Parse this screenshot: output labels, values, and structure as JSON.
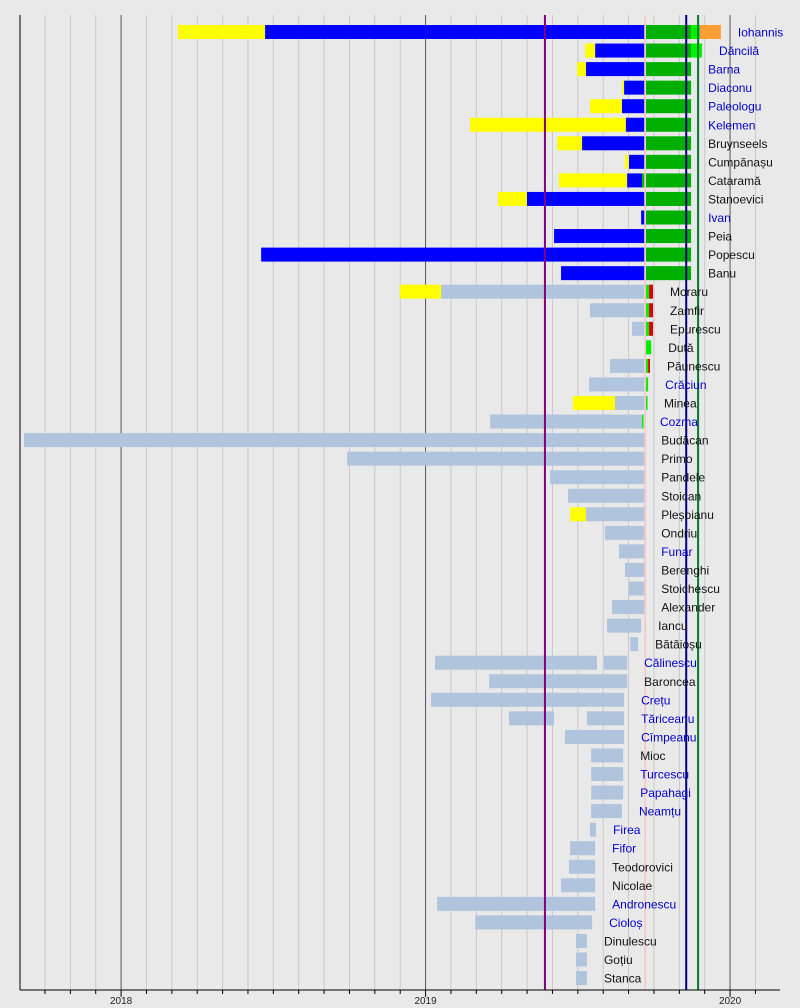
{
  "chart_data": {
    "type": "bar",
    "orientation": "horizontal-timeline",
    "xlabel": "",
    "ylabel": "",
    "xlim": [
      2017.668,
      2020.164
    ],
    "x_ticks": [
      {
        "value": 2018,
        "label": "2018"
      },
      {
        "value": 2019,
        "label": "2019"
      },
      {
        "value": 2020,
        "label": "2020"
      }
    ],
    "grid": "monthly vertical lines, yearly lines darker",
    "palette": {
      "y": "#ffff00",
      "b": "#0000ff",
      "g": "#00b000",
      "G": "#00ee00",
      "o": "#ff9f33",
      "r": "#dd0000",
      "s": "#b0c4de"
    },
    "label_colors": {
      "blue": "#0000cc",
      "black": "#111111"
    },
    "reference_lines": [
      {
        "value": 2019.392,
        "color": "#800080"
      },
      {
        "value": 2019.721,
        "color": "#ffb0b0"
      },
      {
        "value": 2019.856,
        "color": "#000080"
      },
      {
        "value": 2019.895,
        "color": "#007a30"
      }
    ],
    "rows": [
      {
        "name": "Iohannis",
        "label": "blue",
        "segments": [
          [
            2018.187,
            2018.473,
            "y"
          ],
          [
            2018.473,
            2019.718,
            "b"
          ],
          [
            2019.724,
            2019.872,
            "g"
          ],
          [
            2019.872,
            2019.901,
            "G"
          ],
          [
            2019.901,
            2019.97,
            "o"
          ]
        ]
      },
      {
        "name": "Dăncilă",
        "label": "blue",
        "segments": [
          [
            2019.524,
            2019.557,
            "y"
          ],
          [
            2019.557,
            2019.718,
            "b"
          ],
          [
            2019.724,
            2019.872,
            "g"
          ],
          [
            2019.872,
            2019.908,
            "G"
          ]
        ]
      },
      {
        "name": "Barna",
        "label": "blue",
        "segments": [
          [
            2019.498,
            2019.527,
            "y"
          ],
          [
            2019.527,
            2019.718,
            "b"
          ],
          [
            2019.724,
            2019.872,
            "g"
          ]
        ]
      },
      {
        "name": "Diaconu",
        "label": "blue",
        "segments": [
          [
            2019.645,
            2019.652,
            "y"
          ],
          [
            2019.652,
            2019.718,
            "b"
          ],
          [
            2019.724,
            2019.872,
            "g"
          ]
        ]
      },
      {
        "name": "Paleologu",
        "label": "blue",
        "segments": [
          [
            2019.54,
            2019.645,
            "y"
          ],
          [
            2019.645,
            2019.718,
            "b"
          ],
          [
            2019.724,
            2019.872,
            "g"
          ]
        ]
      },
      {
        "name": "Kelemen",
        "label": "blue",
        "segments": [
          [
            2019.146,
            2019.658,
            "y"
          ],
          [
            2019.658,
            2019.718,
            "b"
          ],
          [
            2019.724,
            2019.872,
            "g"
          ]
        ]
      },
      {
        "name": "Bruynseels",
        "label": "black",
        "segments": [
          [
            2019.432,
            2019.514,
            "y"
          ],
          [
            2019.514,
            2019.718,
            "b"
          ],
          [
            2019.724,
            2019.872,
            "g"
          ]
        ]
      },
      {
        "name": "Cumpănașu",
        "label": "black",
        "segments": [
          [
            2019.655,
            2019.668,
            "y"
          ],
          [
            2019.668,
            2019.718,
            "b"
          ],
          [
            2019.724,
            2019.872,
            "g"
          ]
        ]
      },
      {
        "name": "Cataramă",
        "label": "black",
        "segments": [
          [
            2019.438,
            2019.662,
            "y"
          ],
          [
            2019.662,
            2019.711,
            "b"
          ],
          [
            2019.711,
            2019.718,
            "g"
          ],
          [
            2019.724,
            2019.872,
            "g"
          ]
        ]
      },
      {
        "name": "Stanoevici",
        "label": "black",
        "segments": [
          [
            2019.238,
            2019.333,
            "y"
          ],
          [
            2019.333,
            2019.718,
            "b"
          ],
          [
            2019.724,
            2019.872,
            "g"
          ]
        ]
      },
      {
        "name": "Ivan",
        "label": "blue",
        "segments": [
          [
            2019.708,
            2019.718,
            "b"
          ],
          [
            2019.724,
            2019.872,
            "g"
          ]
        ]
      },
      {
        "name": "Peia",
        "label": "black",
        "segments": [
          [
            2019.422,
            2019.718,
            "b"
          ],
          [
            2019.724,
            2019.872,
            "g"
          ]
        ]
      },
      {
        "name": "Popescu",
        "label": "black",
        "segments": [
          [
            2018.46,
            2019.718,
            "b"
          ],
          [
            2019.724,
            2019.872,
            "g"
          ]
        ]
      },
      {
        "name": "Banu",
        "label": "black",
        "segments": [
          [
            2019.445,
            2019.718,
            "b"
          ],
          [
            2019.724,
            2019.872,
            "g"
          ]
        ]
      },
      {
        "name": "Moraru",
        "label": "black",
        "segments": [
          [
            2018.916,
            2019.051,
            "y"
          ],
          [
            2019.051,
            2019.718,
            "s"
          ],
          [
            2019.724,
            2019.734,
            "G"
          ],
          [
            2019.734,
            2019.747,
            "r"
          ]
        ]
      },
      {
        "name": "Zamfir",
        "label": "black",
        "segments": [
          [
            2019.54,
            2019.718,
            "s"
          ],
          [
            2019.724,
            2019.734,
            "G"
          ],
          [
            2019.734,
            2019.747,
            "r"
          ]
        ]
      },
      {
        "name": "Epurescu",
        "label": "black",
        "segments": [
          [
            2019.678,
            2019.718,
            "s"
          ],
          [
            2019.724,
            2019.734,
            "G"
          ],
          [
            2019.734,
            2019.747,
            "r"
          ]
        ]
      },
      {
        "name": "Duță",
        "label": "black",
        "segments": [
          [
            2019.724,
            2019.741,
            "G"
          ]
        ]
      },
      {
        "name": "Păunescu",
        "label": "black",
        "segments": [
          [
            2019.606,
            2019.718,
            "s"
          ],
          [
            2019.724,
            2019.731,
            "G"
          ],
          [
            2019.731,
            2019.737,
            "r"
          ]
        ]
      },
      {
        "name": "Crăciun",
        "label": "blue",
        "segments": [
          [
            2019.537,
            2019.718,
            "s"
          ],
          [
            2019.724,
            2019.731,
            "G"
          ]
        ]
      },
      {
        "name": "Minea",
        "label": "black",
        "segments": [
          [
            2019.484,
            2019.622,
            "y"
          ],
          [
            2019.622,
            2019.718,
            "s"
          ],
          [
            2019.724,
            2019.727,
            "G"
          ]
        ]
      },
      {
        "name": "Cozma",
        "label": "blue",
        "segments": [
          [
            2019.212,
            2019.711,
            "s"
          ],
          [
            2019.711,
            2019.714,
            "G"
          ]
        ]
      },
      {
        "name": "Budăcan",
        "label": "black",
        "segments": [
          [
            2017.681,
            2019.718,
            "s"
          ]
        ]
      },
      {
        "name": "Primo",
        "label": "black",
        "segments": [
          [
            2018.742,
            2019.718,
            "s"
          ]
        ]
      },
      {
        "name": "Pandele",
        "label": "black",
        "segments": [
          [
            2019.409,
            2019.718,
            "s"
          ]
        ]
      },
      {
        "name": "Stoican",
        "label": "black",
        "segments": [
          [
            2019.468,
            2019.718,
            "s"
          ]
        ]
      },
      {
        "name": "Pleșoianu",
        "label": "black",
        "segments": [
          [
            2019.475,
            2019.527,
            "y"
          ],
          [
            2019.527,
            2019.718,
            "s"
          ]
        ]
      },
      {
        "name": "Ondriu",
        "label": "black",
        "segments": [
          [
            2019.589,
            2019.718,
            "s"
          ]
        ]
      },
      {
        "name": "Funar",
        "label": "blue",
        "segments": [
          [
            2019.635,
            2019.718,
            "s"
          ]
        ]
      },
      {
        "name": "Berenghi",
        "label": "black",
        "segments": [
          [
            2019.655,
            2019.718,
            "s"
          ]
        ]
      },
      {
        "name": "Stoichescu",
        "label": "black",
        "segments": [
          [
            2019.668,
            2019.718,
            "s"
          ]
        ]
      },
      {
        "name": "Alexander",
        "label": "black",
        "segments": [
          [
            2019.612,
            2019.718,
            "s"
          ]
        ]
      },
      {
        "name": "Iancu",
        "label": "black",
        "segments": [
          [
            2019.596,
            2019.708,
            "s"
          ]
        ]
      },
      {
        "name": "Bătăioșu",
        "label": "black",
        "segments": [
          [
            2019.672,
            2019.698,
            "s"
          ]
        ]
      },
      {
        "name": "Călinescu",
        "label": "blue",
        "segments": [
          [
            2019.031,
            2019.563,
            "s"
          ],
          [
            2019.586,
            2019.662,
            "s"
          ]
        ]
      },
      {
        "name": "Baroncea",
        "label": "black",
        "segments": [
          [
            2019.209,
            2019.662,
            "s"
          ]
        ]
      },
      {
        "name": "Crețu",
        "label": "blue",
        "segments": [
          [
            2019.018,
            2019.652,
            "s"
          ]
        ]
      },
      {
        "name": "Tăriceanu",
        "label": "blue",
        "segments": [
          [
            2019.274,
            2019.422,
            "s"
          ],
          [
            2019.53,
            2019.652,
            "s"
          ]
        ]
      },
      {
        "name": "Cîmpeanu",
        "label": "blue",
        "segments": [
          [
            2019.458,
            2019.652,
            "s"
          ]
        ]
      },
      {
        "name": "Mioc",
        "label": "black",
        "segments": [
          [
            2019.544,
            2019.649,
            "s"
          ]
        ]
      },
      {
        "name": "Turcescu",
        "label": "blue",
        "segments": [
          [
            2019.544,
            2019.649,
            "s"
          ]
        ]
      },
      {
        "name": "Papahagi",
        "label": "blue",
        "segments": [
          [
            2019.544,
            2019.649,
            "s"
          ]
        ]
      },
      {
        "name": "Neamțu",
        "label": "blue",
        "segments": [
          [
            2019.544,
            2019.645,
            "s"
          ]
        ]
      },
      {
        "name": "Firea",
        "label": "blue",
        "segments": [
          [
            2019.54,
            2019.56,
            "s"
          ]
        ]
      },
      {
        "name": "Fifor",
        "label": "blue",
        "segments": [
          [
            2019.475,
            2019.557,
            "s"
          ]
        ]
      },
      {
        "name": "Teodorovici",
        "label": "black",
        "segments": [
          [
            2019.471,
            2019.557,
            "s"
          ]
        ]
      },
      {
        "name": "Nicolae",
        "label": "black",
        "segments": [
          [
            2019.445,
            2019.557,
            "s"
          ]
        ]
      },
      {
        "name": "Andronescu",
        "label": "blue",
        "segments": [
          [
            2019.038,
            2019.557,
            "s"
          ]
        ]
      },
      {
        "name": "Cioloș",
        "label": "blue",
        "segments": [
          [
            2019.163,
            2019.547,
            "s"
          ]
        ]
      },
      {
        "name": "Dinulescu",
        "label": "black",
        "segments": [
          [
            2019.494,
            2019.53,
            "s"
          ]
        ]
      },
      {
        "name": "Goțiu",
        "label": "black",
        "segments": [
          [
            2019.494,
            2019.53,
            "s"
          ]
        ]
      },
      {
        "name": "Stanca",
        "label": "black",
        "segments": [
          [
            2019.494,
            2019.53,
            "s"
          ]
        ]
      }
    ]
  }
}
